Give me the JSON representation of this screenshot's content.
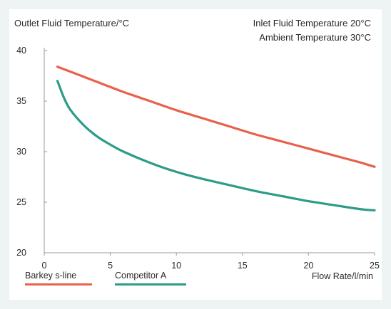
{
  "chart_data": {
    "type": "line",
    "ylabel": "Outlet Fluid Temperature/°C",
    "xlabel": "Flow Rate/l/min",
    "annotations": [
      "Inlet Fluid Temperature 20°C",
      "Ambient Temperature 30°C"
    ],
    "xlim": [
      0,
      25
    ],
    "ylim": [
      20,
      40
    ],
    "xticks": [
      "0",
      "5",
      "10",
      "15",
      "20",
      "25"
    ],
    "yticks": [
      "20",
      "25",
      "30",
      "35",
      "40"
    ],
    "grid": false,
    "legend_position": "bottom-left",
    "series": [
      {
        "name": "Barkey s-line",
        "color": "#e8614b",
        "x": [
          1,
          2,
          3,
          4,
          5,
          6,
          8,
          10,
          12,
          14,
          16,
          18,
          20,
          22,
          24,
          25
        ],
        "y": [
          38.4,
          37.9,
          37.4,
          36.9,
          36.4,
          35.9,
          35.0,
          34.1,
          33.3,
          32.5,
          31.7,
          31.0,
          30.3,
          29.6,
          28.9,
          28.5
        ]
      },
      {
        "name": "Competitor A",
        "color": "#2c9c86",
        "x": [
          1,
          1.5,
          2,
          3,
          4,
          5,
          6,
          8,
          10,
          12,
          14,
          16,
          18,
          20,
          22,
          24,
          25
        ],
        "y": [
          37.0,
          35.3,
          34.1,
          32.6,
          31.5,
          30.7,
          30.0,
          28.9,
          28.0,
          27.3,
          26.7,
          26.1,
          25.6,
          25.1,
          24.7,
          24.3,
          24.2
        ]
      }
    ]
  }
}
